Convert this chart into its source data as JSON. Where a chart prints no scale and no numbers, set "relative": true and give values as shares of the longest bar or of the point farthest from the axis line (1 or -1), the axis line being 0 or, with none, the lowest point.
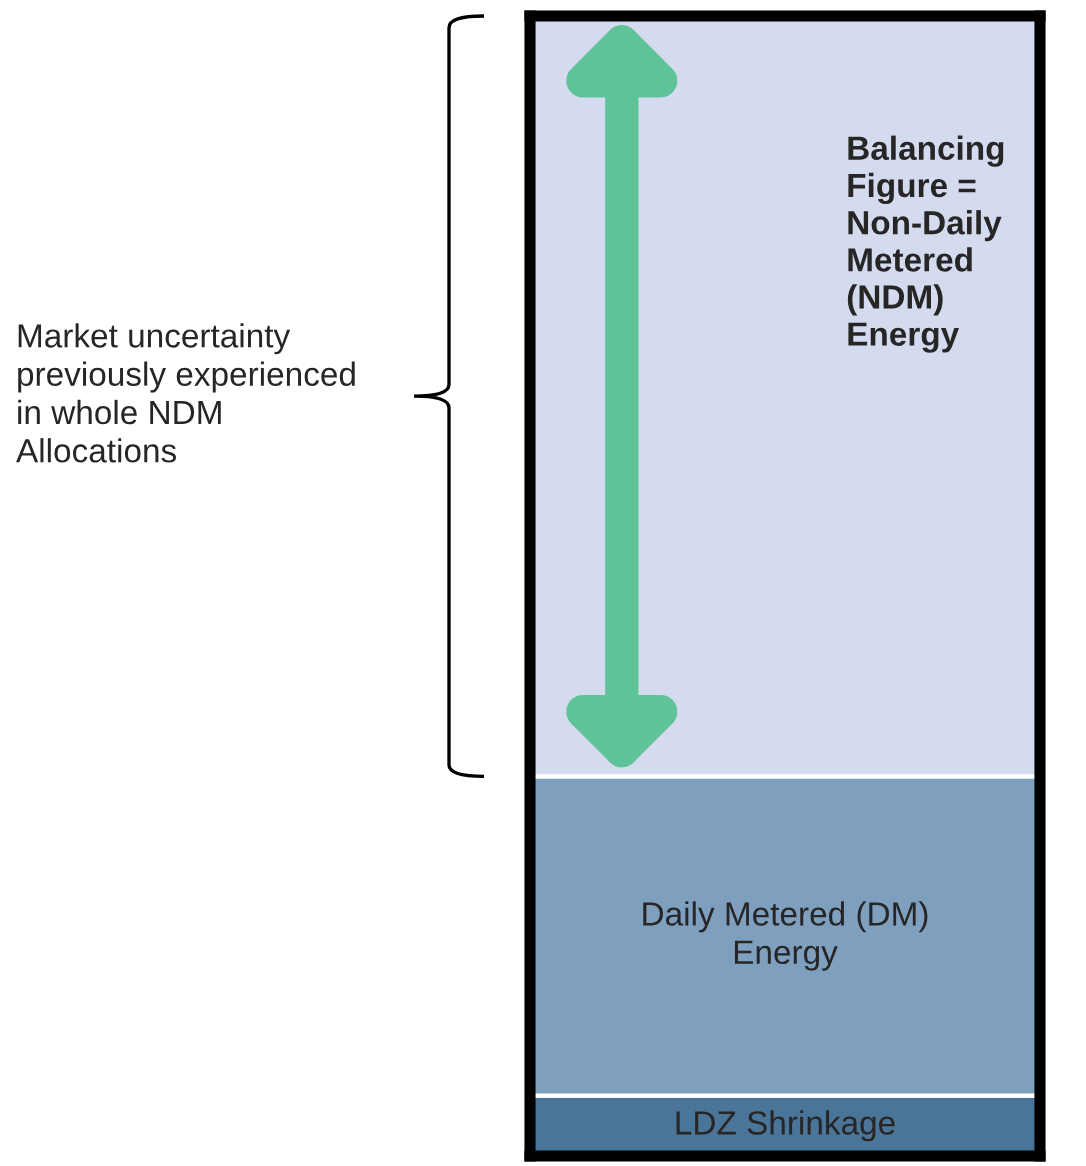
{
  "chart_data": {
    "type": "bar",
    "stacked": true,
    "relative": true,
    "legend": false,
    "categories": [
      null
    ],
    "series": [
      {
        "name": "LDZ Shrinkage",
        "color": "#4b7598",
        "values": [
          0.053
        ]
      },
      {
        "name": "Daily Metered (DM) Energy",
        "color": "#7f9fbe",
        "values": [
          0.28
        ]
      },
      {
        "name": "Balancing Figure = Non-Daily Metered (NDM) Energy",
        "color": "#d5dbee",
        "values": [
          0.667
        ]
      }
    ],
    "annotations": [
      "Market uncertainty previously experienced in whole NDM Allocations"
    ]
  }
}
